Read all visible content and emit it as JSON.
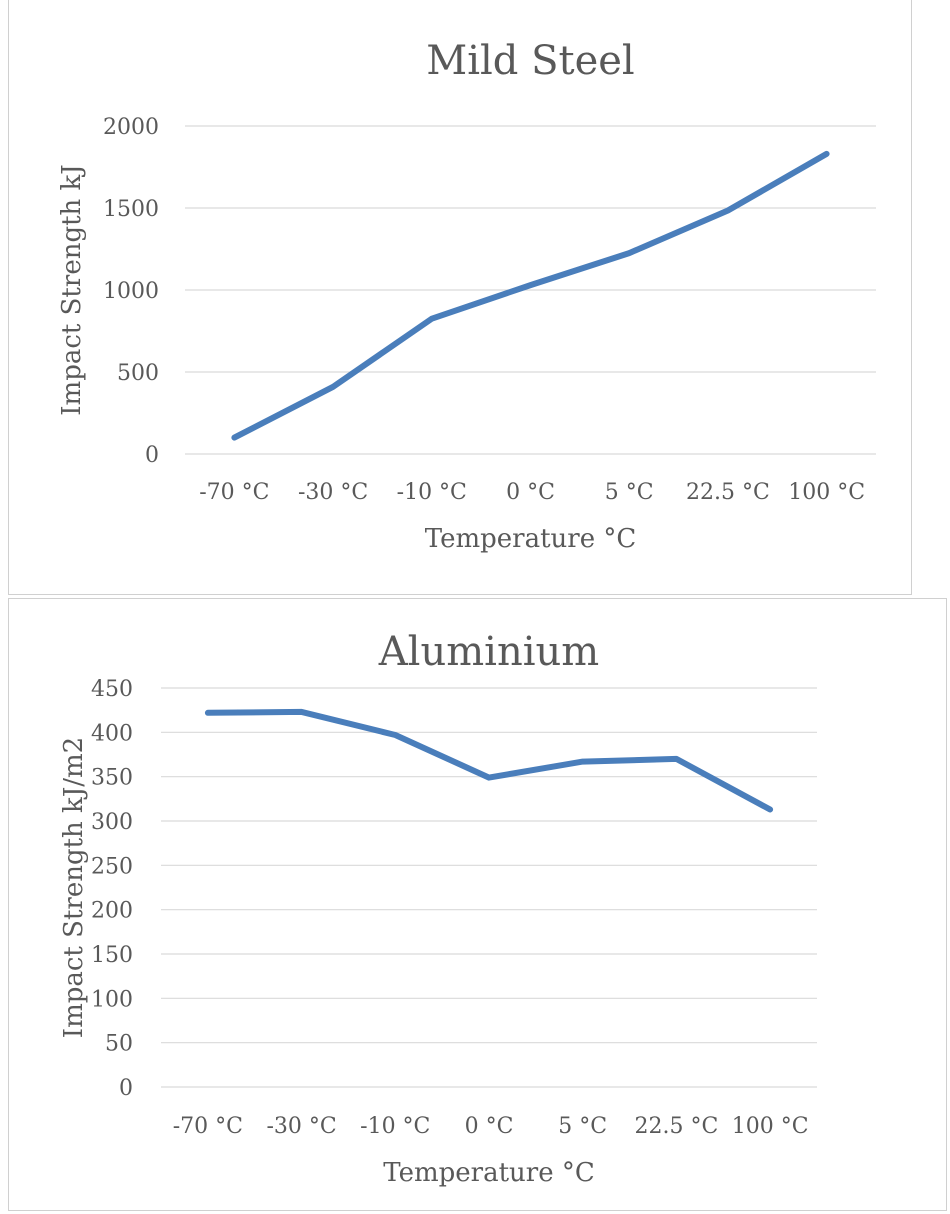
{
  "header_fragment": "",
  "chart_data": [
    {
      "type": "line",
      "title": "Mild Steel",
      "xlabel": "Temperature °C",
      "ylabel": "Impact Strength kJ",
      "categories": [
        "-70 °C",
        "-30 °C",
        "-10 °C",
        "0 °C",
        "5 °C",
        "22.5 °C",
        "100 °C"
      ],
      "series": [
        {
          "values": [
            100,
            410,
            825,
            1030,
            1225,
            1485,
            1830
          ]
        }
      ],
      "ylim": [
        0,
        2000
      ],
      "yticks": [
        0,
        500,
        1000,
        1500,
        2000
      ],
      "grid": true,
      "legend": "none",
      "color": "#4a7ebb"
    },
    {
      "type": "line",
      "title": "Aluminium",
      "xlabel": "Temperature °C",
      "ylabel": "Impact Strength kJ/m2",
      "categories": [
        "-70 °C",
        "-30 °C",
        "-10 °C",
        "0 °C",
        "5 °C",
        "22.5 °C",
        "100 °C"
      ],
      "series": [
        {
          "values": [
            422,
            423,
            397,
            349,
            367,
            370,
            313
          ]
        }
      ],
      "ylim": [
        0,
        450
      ],
      "yticks": [
        0,
        50,
        100,
        150,
        200,
        250,
        300,
        350,
        400,
        450
      ],
      "grid": true,
      "legend": "none",
      "color": "#4a7ebb"
    }
  ]
}
